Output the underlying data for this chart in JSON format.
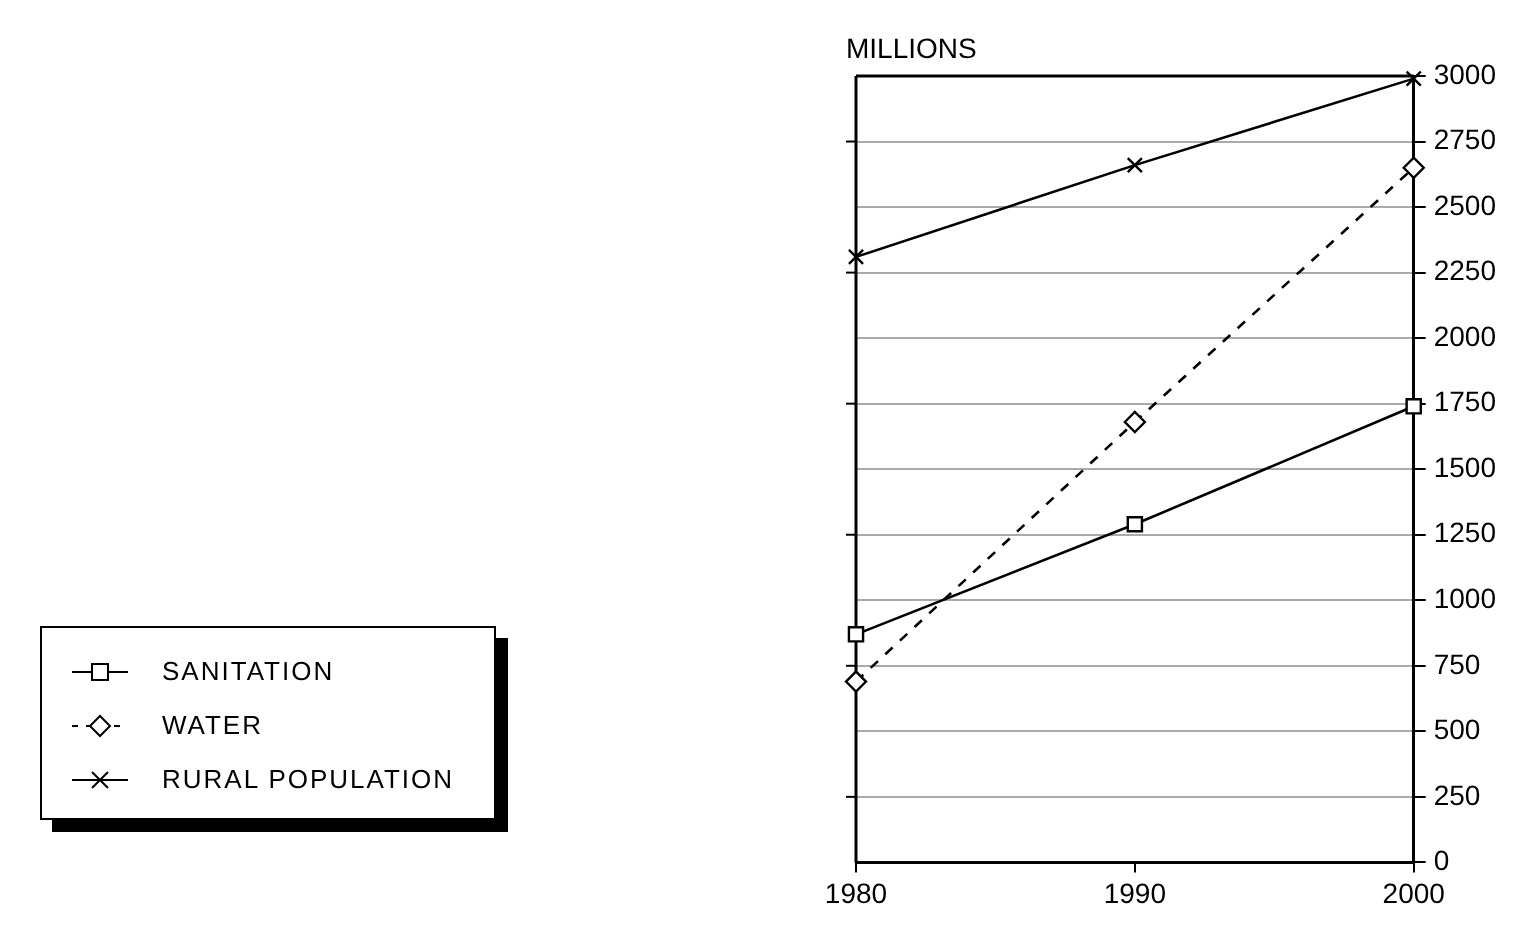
{
  "chart_data": {
    "type": "line",
    "ylabel": "MILLIONS",
    "x": [
      1980,
      1990,
      2000
    ],
    "xlim": [
      1980,
      2000
    ],
    "xticks": [
      1980,
      1990,
      2000
    ],
    "ylim": [
      0,
      3000
    ],
    "yticks": [
      0,
      250,
      500,
      750,
      1000,
      1250,
      1500,
      1750,
      2000,
      2250,
      2500,
      2750,
      3000
    ],
    "grid": "y",
    "legend": "bottom left",
    "series": [
      {
        "name": "SANITATION",
        "color": "#000000",
        "values": [
          870,
          1290,
          1740
        ],
        "marker": "square",
        "line_style": "solid"
      },
      {
        "name": "WATER",
        "color": "#000000",
        "values": [
          690,
          1680,
          2650
        ],
        "marker": "diamond",
        "line_style": "dashed"
      },
      {
        "name": "RURAL POPULATION",
        "color": "#000000",
        "values": [
          2310,
          2660,
          2990
        ],
        "marker": "cross",
        "line_style": "solid"
      }
    ]
  }
}
